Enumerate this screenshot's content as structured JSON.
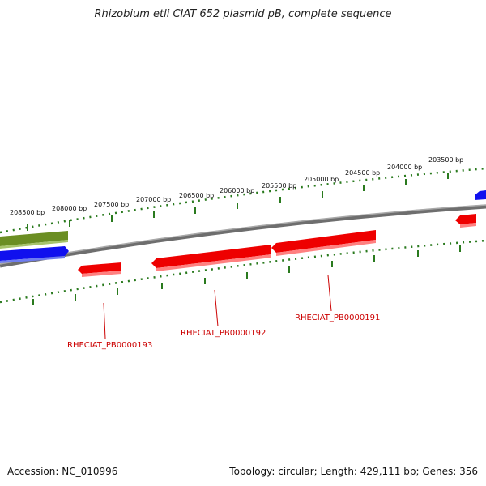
{
  "title": "Rhizobium etli CIAT 652 plasmid pB, complete sequence",
  "footer": {
    "accession": "Accession: NC_010996",
    "summary": "Topology: circular; Length: 429,111 bp; Genes: 356"
  },
  "ticks": [
    {
      "label": "208500 bp"
    },
    {
      "label": "208000 bp"
    },
    {
      "label": "207500 bp"
    },
    {
      "label": "207000 bp"
    },
    {
      "label": "206500 bp"
    },
    {
      "label": "206000 bp"
    },
    {
      "label": "205500 bp"
    },
    {
      "label": "205000 bp"
    },
    {
      "label": "204500 bp"
    },
    {
      "label": "204000 bp"
    },
    {
      "label": "203500 bp"
    }
  ],
  "genes": [
    {
      "label": "RHECIAT_PB0000193"
    },
    {
      "label": "RHECIAT_PB0000192"
    },
    {
      "label": "RHECIAT_PB0000191"
    }
  ],
  "colors": {
    "backbone": "#808080",
    "tick": "#2a7a1e",
    "gene_red": "#ee0000",
    "gene_blue": "#0000ee",
    "gene_olive": "#6b8e23",
    "label_red": "#cc0000"
  }
}
